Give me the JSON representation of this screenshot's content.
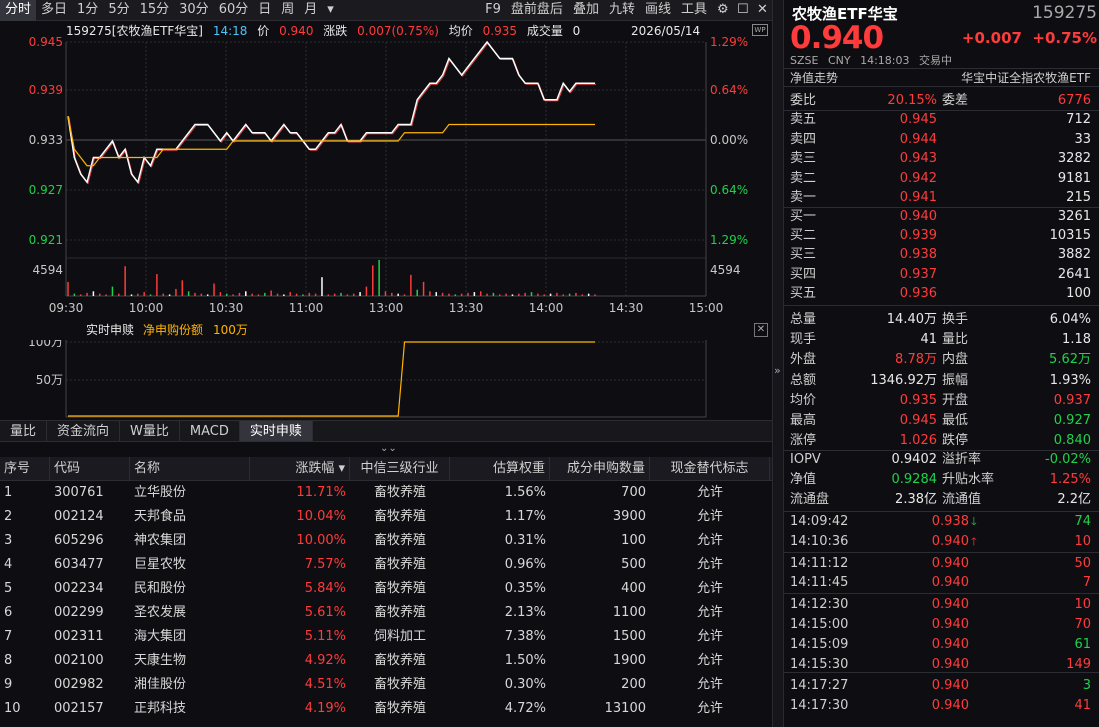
{
  "toolbar": {
    "items": [
      "分时",
      "多日",
      "1分",
      "5分",
      "15分",
      "30分",
      "60分",
      "日",
      "周",
      "月"
    ],
    "dropdown": "▾",
    "right_items": [
      "F9",
      "盘前盘后",
      "叠加",
      "九转",
      "画线",
      "工具"
    ]
  },
  "chart_header": {
    "title": "159275[农牧渔ETF华宝]",
    "time": "14:18",
    "price_label": "价",
    "price": "0.940",
    "change_label": "涨跌",
    "change": "0.007(0.75%)",
    "avg_label": "均价",
    "avg": "0.935",
    "volume_label": "成交量",
    "volume": "0",
    "date": "2026/05/14",
    "icon": "WP"
  },
  "y_left": [
    "0.945",
    "0.939",
    "0.933",
    "0.927",
    "0.921"
  ],
  "y_right": [
    "1.29%",
    "0.64%",
    "0.00%",
    "0.64%",
    "1.29%"
  ],
  "vol_label": "4594",
  "x_labels": [
    "09:30",
    "10:00",
    "10:30",
    "11:00",
    "13:00",
    "13:30",
    "14:00",
    "14:30",
    "15:00"
  ],
  "chart_data": [
    {
      "type": "line",
      "series": [
        {
          "values": [
            0.936,
            0.931,
            0.929,
            0.928,
            0.931,
            0.931,
            0.932,
            0.933,
            0.931,
            0.932,
            0.929,
            0.928,
            0.931,
            0.93,
            0.932,
            0.932,
            0.932,
            0.932,
            0.933,
            0.934,
            0.935,
            0.935,
            0.935,
            0.934,
            0.933,
            0.934,
            0.933,
            0.934,
            0.935,
            0.934,
            0.934,
            0.934,
            0.933,
            0.934,
            0.935,
            0.934,
            0.934,
            0.933,
            0.932,
            0.932,
            0.933,
            0.934,
            0.934,
            0.935,
            0.933,
            0.933,
            0.933,
            0.934,
            0.934,
            0.934,
            0.934,
            0.934,
            0.935,
            0.935,
            0.935,
            0.938,
            0.939,
            0.94,
            0.94,
            0.941,
            0.943,
            0.942,
            0.941,
            0.942,
            0.943,
            0.944,
            0.945,
            0.944,
            0.943,
            0.943,
            0.943,
            0.941,
            0.94,
            0.94,
            0.94,
            0.938,
            0.938,
            0.938,
            0.94,
            0.939,
            0.94,
            0.94,
            0.94,
            0.94
          ]
        },
        {
          "values": [
            0.936,
            0.932,
            0.931,
            0.93,
            0.93,
            0.931,
            0.931,
            0.931,
            0.931,
            0.931,
            0.931,
            0.931,
            0.931,
            0.931,
            0.931,
            0.932,
            0.932,
            0.932,
            0.932,
            0.932,
            0.932,
            0.932,
            0.932,
            0.932,
            0.932,
            0.932,
            0.933,
            0.933,
            0.933,
            0.933,
            0.933,
            0.933,
            0.933,
            0.933,
            0.933,
            0.933,
            0.933,
            0.933,
            0.933,
            0.933,
            0.933,
            0.933,
            0.933,
            0.933,
            0.933,
            0.933,
            0.933,
            0.933,
            0.933,
            0.933,
            0.933,
            0.933,
            0.933,
            0.934,
            0.934,
            0.934,
            0.934,
            0.934,
            0.934,
            0.934,
            0.935,
            0.935,
            0.935,
            0.935,
            0.935,
            0.935,
            0.935,
            0.935,
            0.935,
            0.935,
            0.935,
            0.935,
            0.935,
            0.935,
            0.935,
            0.935,
            0.935,
            0.935,
            0.935,
            0.935,
            0.935,
            0.935,
            0.935,
            0.935
          ]
        }
      ],
      "ylim": [
        0.921,
        0.945
      ]
    },
    {
      "type": "bar",
      "values": [
        1800,
        300,
        200,
        400,
        600,
        300,
        200,
        1200,
        300,
        3800,
        200,
        300,
        500,
        200,
        2800,
        300,
        200,
        900,
        2000,
        600,
        400,
        300,
        200,
        1600,
        500,
        300,
        200,
        400,
        600,
        300,
        200,
        400,
        700,
        300,
        200,
        500,
        300,
        200,
        400,
        300,
        2400,
        200,
        300,
        400,
        200,
        300,
        500,
        1200,
        3900,
        4594,
        600,
        400,
        300,
        200,
        2700,
        800,
        1800,
        600,
        500,
        400,
        300,
        200,
        300,
        400,
        500,
        600,
        300,
        400,
        200,
        300,
        200,
        300,
        400,
        500,
        300,
        200,
        300,
        400,
        200,
        300,
        400,
        200,
        300,
        200
      ],
      "ylim": [
        0,
        4594
      ]
    },
    {
      "type": "line",
      "title": "实时申赎",
      "series": [
        {
          "name": "净申购份额",
          "values": [
            0,
            0,
            0,
            0,
            0,
            0,
            0,
            0,
            0,
            0,
            0,
            0,
            0,
            0,
            0,
            0,
            0,
            0,
            0,
            0,
            0,
            0,
            0,
            0,
            0,
            0,
            0,
            0,
            0,
            0,
            0,
            0,
            0,
            0,
            0,
            0,
            0,
            0,
            0,
            0,
            0,
            0,
            0,
            0,
            0,
            0,
            0,
            0,
            0,
            0,
            0,
            0,
            0,
            1000000,
            1000000,
            1000000,
            1000000,
            1000000,
            1000000,
            1000000,
            1000000,
            1000000,
            1000000,
            1000000,
            1000000,
            1000000,
            1000000,
            1000000,
            1000000,
            1000000,
            1000000,
            1000000,
            1000000,
            1000000,
            1000000,
            1000000,
            1000000,
            1000000,
            1000000,
            1000000,
            1000000,
            1000000,
            1000000,
            1000000
          ]
        }
      ],
      "ylim": [
        0,
        1000000
      ]
    }
  ],
  "sub_panel": {
    "title": "实时申赎",
    "legend": "净申购份额",
    "value": "100万",
    "y_labels": [
      "100万",
      "50万"
    ],
    "close": "✕"
  },
  "tabs": [
    "量比",
    "资金流向",
    "W量比",
    "MACD",
    "实时申赎"
  ],
  "collapse": "⌄⌄",
  "table": {
    "headers": [
      "序号",
      "代码",
      "名称",
      "涨跌幅 ▾",
      "中信三级行业",
      "估算权重",
      "成分申购数量",
      "现金替代标志"
    ],
    "rows": [
      [
        "1",
        "300761",
        "立华股份",
        "11.71%",
        "畜牧养殖",
        "1.56%",
        "700",
        "允许"
      ],
      [
        "2",
        "002124",
        "天邦食品",
        "10.04%",
        "畜牧养殖",
        "1.17%",
        "3900",
        "允许"
      ],
      [
        "3",
        "605296",
        "神农集团",
        "10.00%",
        "畜牧养殖",
        "0.31%",
        "100",
        "允许"
      ],
      [
        "4",
        "603477",
        "巨星农牧",
        "7.57%",
        "畜牧养殖",
        "0.96%",
        "500",
        "允许"
      ],
      [
        "5",
        "002234",
        "民和股份",
        "5.84%",
        "畜牧养殖",
        "0.35%",
        "400",
        "允许"
      ],
      [
        "6",
        "002299",
        "圣农发展",
        "5.61%",
        "畜牧养殖",
        "2.13%",
        "1100",
        "允许"
      ],
      [
        "7",
        "002311",
        "海大集团",
        "5.11%",
        "饲料加工",
        "7.38%",
        "1500",
        "允许"
      ],
      [
        "8",
        "002100",
        "天康生物",
        "4.92%",
        "畜牧养殖",
        "1.50%",
        "1900",
        "允许"
      ],
      [
        "9",
        "002982",
        "湘佳股份",
        "4.51%",
        "畜牧养殖",
        "0.30%",
        "200",
        "允许"
      ],
      [
        "10",
        "002157",
        "正邦科技",
        "4.19%",
        "畜牧养殖",
        "4.72%",
        "13100",
        "允许"
      ]
    ]
  },
  "quote": {
    "name": "农牧渔ETF华宝",
    "code": "159275",
    "price": "0.940",
    "change": "+0.007",
    "change_pct": "+0.75%",
    "exchange": "SZSE",
    "currency": "CNY",
    "time": "14:18:03",
    "status": "交易中",
    "nav_label": "净值走势",
    "index_name": "华宝中证全指农牧渔ETF",
    "weibi_label": "委比",
    "weibi": "20.15%",
    "weicha_label": "委差",
    "weicha": "6776",
    "asks": [
      {
        "label": "卖五",
        "price": "0.945",
        "vol": "712"
      },
      {
        "label": "卖四",
        "price": "0.944",
        "vol": "33"
      },
      {
        "label": "卖三",
        "price": "0.943",
        "vol": "3282"
      },
      {
        "label": "卖二",
        "price": "0.942",
        "vol": "9181"
      },
      {
        "label": "卖一",
        "price": "0.941",
        "vol": "215"
      }
    ],
    "bids": [
      {
        "label": "买一",
        "price": "0.940",
        "vol": "3261"
      },
      {
        "label": "买二",
        "price": "0.939",
        "vol": "10315"
      },
      {
        "label": "买三",
        "price": "0.938",
        "vol": "3882"
      },
      {
        "label": "买四",
        "price": "0.937",
        "vol": "2641"
      },
      {
        "label": "买五",
        "price": "0.936",
        "vol": "100"
      }
    ],
    "stats": [
      {
        "l1": "总量",
        "v1": "14.40万",
        "c1": "white",
        "l2": "换手",
        "v2": "6.04%",
        "c2": "white"
      },
      {
        "l1": "现手",
        "v1": "41",
        "c1": "white",
        "l2": "量比",
        "v2": "1.18",
        "c2": "white"
      },
      {
        "l1": "外盘",
        "v1": "8.78万",
        "c1": "red",
        "l2": "内盘",
        "v2": "5.62万",
        "c2": "green"
      },
      {
        "l1": "总额",
        "v1": "1346.92万",
        "c1": "white",
        "l2": "振幅",
        "v2": "1.93%",
        "c2": "white"
      },
      {
        "l1": "均价",
        "v1": "0.935",
        "c1": "red",
        "l2": "开盘",
        "v2": "0.937",
        "c2": "red"
      },
      {
        "l1": "最高",
        "v1": "0.945",
        "c1": "red",
        "l2": "最低",
        "v2": "0.927",
        "c2": "green"
      },
      {
        "l1": "涨停",
        "v1": "1.026",
        "c1": "red",
        "l2": "跌停",
        "v2": "0.840",
        "c2": "green"
      }
    ],
    "stats2": [
      {
        "l1": "IOPV",
        "v1": "0.9402",
        "c1": "white",
        "l2": "溢折率",
        "v2": "-0.02%",
        "c2": "green"
      },
      {
        "l1": "净值",
        "v1": "0.9284",
        "c1": "green",
        "l2": "升贴水率",
        "v2": "1.25%",
        "c2": "red"
      },
      {
        "l1": "流通盘",
        "v1": "2.38亿",
        "c1": "white",
        "l2": "流通值",
        "v2": "2.2亿",
        "c2": "white"
      }
    ],
    "ticks": [
      {
        "t": "14:09:42",
        "p": "0.938",
        "ar": "down",
        "v": "74",
        "vc": "green"
      },
      {
        "t": "14:10:36",
        "p": "0.940",
        "ar": "up",
        "v": "10",
        "vc": "red"
      },
      {
        "t": "14:11:12",
        "p": "0.940",
        "ar": "",
        "v": "50",
        "vc": "red"
      },
      {
        "t": "14:11:45",
        "p": "0.940",
        "ar": "",
        "v": "7",
        "vc": "red"
      },
      {
        "t": "14:12:30",
        "p": "0.940",
        "ar": "",
        "v": "10",
        "vc": "red"
      },
      {
        "t": "14:15:00",
        "p": "0.940",
        "ar": "",
        "v": "70",
        "vc": "red"
      },
      {
        "t": "14:15:09",
        "p": "0.940",
        "ar": "",
        "v": "61",
        "vc": "green"
      },
      {
        "t": "14:15:30",
        "p": "0.940",
        "ar": "",
        "v": "149",
        "vc": "red"
      },
      {
        "t": "14:17:27",
        "p": "0.940",
        "ar": "",
        "v": "3",
        "vc": "green"
      },
      {
        "t": "14:17:30",
        "p": "0.940",
        "ar": "",
        "v": "41",
        "vc": "red"
      }
    ],
    "colors": {
      "up": "#ff3b3b",
      "down": "#1fd14a",
      "avg": "#ffb400",
      "price_line": "#ffffff"
    }
  }
}
